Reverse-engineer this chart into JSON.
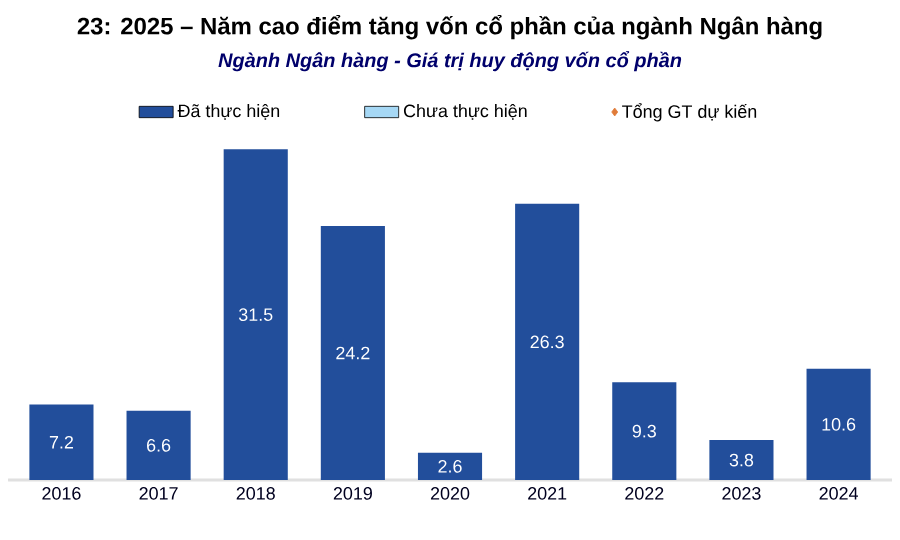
{
  "chart_data": {
    "type": "bar",
    "title": "23: 2025 – Năm cao điểm tăng vốn cổ phần của ngành Ngân hàng",
    "subtitle": "Ngành Ngân hàng - Giá trị huy động vốn cổ phần",
    "categories": [
      "2016",
      "2017",
      "2018",
      "2019",
      "2020",
      "2021",
      "2022",
      "2023",
      "2024"
    ],
    "series": [
      {
        "name": "Đã thực hiện",
        "color": "#224e9b",
        "values": [
          7.2,
          6.6,
          31.5,
          24.2,
          2.6,
          26.3,
          9.3,
          3.8,
          10.6
        ]
      },
      {
        "name": "Chưa thực hiện",
        "color": "#a6d8f5",
        "values": [
          null,
          null,
          null,
          null,
          null,
          null,
          null,
          null,
          null
        ]
      },
      {
        "name": "Tổng GT dự kiến",
        "type": "scatter",
        "marker": "diamond",
        "color": "#e07b39",
        "values": [
          null,
          null,
          null,
          null,
          null,
          null,
          null,
          null,
          null
        ]
      }
    ],
    "data_labels": true,
    "legend": "top"
  }
}
